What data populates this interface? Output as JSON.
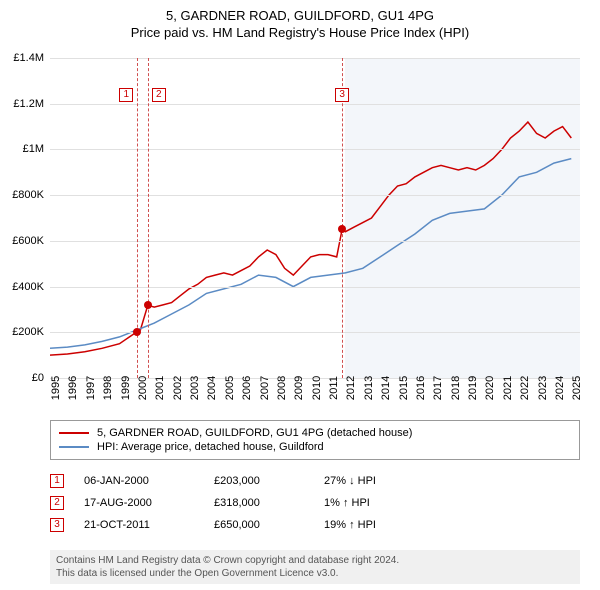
{
  "title": {
    "main": "5, GARDNER ROAD, GUILDFORD, GU1 4PG",
    "sub": "Price paid vs. HM Land Registry's House Price Index (HPI)"
  },
  "chart": {
    "type": "line",
    "background_color": "#ffffff",
    "grid_color": "#e0e0e0",
    "shaded_region_color": "#f3f6fa",
    "shaded_region_x_start": 2012,
    "x_range": [
      1995,
      2025.5
    ],
    "y_range": [
      0,
      1400000
    ],
    "y_ticks": [
      {
        "v": 0,
        "label": "£0"
      },
      {
        "v": 200000,
        "label": "£200K"
      },
      {
        "v": 400000,
        "label": "£400K"
      },
      {
        "v": 600000,
        "label": "£600K"
      },
      {
        "v": 800000,
        "label": "£800K"
      },
      {
        "v": 1000000,
        "label": "£1M"
      },
      {
        "v": 1200000,
        "label": "£1.2M"
      },
      {
        "v": 1400000,
        "label": "£1.4M"
      }
    ],
    "x_ticks": [
      1995,
      1996,
      1997,
      1998,
      1999,
      2000,
      2001,
      2002,
      2003,
      2004,
      2005,
      2006,
      2007,
      2008,
      2009,
      2010,
      2011,
      2012,
      2013,
      2014,
      2015,
      2016,
      2017,
      2018,
      2019,
      2020,
      2021,
      2022,
      2023,
      2024,
      2025
    ],
    "x_tick_fontsize": 11,
    "y_tick_fontsize": 11,
    "reference_lines": [
      {
        "x": 2000.02,
        "marker": "1"
      },
      {
        "x": 2000.63,
        "marker": "2"
      },
      {
        "x": 2011.81,
        "marker": "3"
      }
    ],
    "data_points": [
      {
        "x": 2000.02,
        "y": 203000
      },
      {
        "x": 2000.63,
        "y": 318000
      },
      {
        "x": 2011.81,
        "y": 650000
      }
    ],
    "series": [
      {
        "name": "price_paid",
        "color": "#cc0000",
        "width": 1.5,
        "points": [
          [
            1995,
            100000
          ],
          [
            1996,
            105000
          ],
          [
            1997,
            115000
          ],
          [
            1998,
            130000
          ],
          [
            1999,
            150000
          ],
          [
            2000.02,
            203000
          ],
          [
            2000.2,
            210000
          ],
          [
            2000.63,
            318000
          ],
          [
            2001,
            310000
          ],
          [
            2001.5,
            320000
          ],
          [
            2002,
            330000
          ],
          [
            2002.5,
            360000
          ],
          [
            2003,
            390000
          ],
          [
            2003.5,
            410000
          ],
          [
            2004,
            440000
          ],
          [
            2004.5,
            450000
          ],
          [
            2005,
            460000
          ],
          [
            2005.5,
            450000
          ],
          [
            2006,
            470000
          ],
          [
            2006.5,
            490000
          ],
          [
            2007,
            530000
          ],
          [
            2007.5,
            560000
          ],
          [
            2008,
            540000
          ],
          [
            2008.5,
            480000
          ],
          [
            2009,
            450000
          ],
          [
            2009.5,
            490000
          ],
          [
            2010,
            530000
          ],
          [
            2010.5,
            540000
          ],
          [
            2011,
            540000
          ],
          [
            2011.5,
            530000
          ],
          [
            2011.81,
            650000
          ],
          [
            2012,
            640000
          ],
          [
            2012.5,
            660000
          ],
          [
            2013,
            680000
          ],
          [
            2013.5,
            700000
          ],
          [
            2014,
            750000
          ],
          [
            2014.5,
            800000
          ],
          [
            2015,
            840000
          ],
          [
            2015.5,
            850000
          ],
          [
            2016,
            880000
          ],
          [
            2016.5,
            900000
          ],
          [
            2017,
            920000
          ],
          [
            2017.5,
            930000
          ],
          [
            2018,
            920000
          ],
          [
            2018.5,
            910000
          ],
          [
            2019,
            920000
          ],
          [
            2019.5,
            910000
          ],
          [
            2020,
            930000
          ],
          [
            2020.5,
            960000
          ],
          [
            2021,
            1000000
          ],
          [
            2021.5,
            1050000
          ],
          [
            2022,
            1080000
          ],
          [
            2022.5,
            1120000
          ],
          [
            2023,
            1070000
          ],
          [
            2023.5,
            1050000
          ],
          [
            2024,
            1080000
          ],
          [
            2024.5,
            1100000
          ],
          [
            2025,
            1050000
          ]
        ]
      },
      {
        "name": "hpi",
        "color": "#5b8bc4",
        "width": 1.5,
        "points": [
          [
            1995,
            130000
          ],
          [
            1996,
            135000
          ],
          [
            1997,
            145000
          ],
          [
            1998,
            160000
          ],
          [
            1999,
            180000
          ],
          [
            2000,
            210000
          ],
          [
            2001,
            240000
          ],
          [
            2002,
            280000
          ],
          [
            2003,
            320000
          ],
          [
            2004,
            370000
          ],
          [
            2005,
            390000
          ],
          [
            2006,
            410000
          ],
          [
            2007,
            450000
          ],
          [
            2008,
            440000
          ],
          [
            2009,
            400000
          ],
          [
            2010,
            440000
          ],
          [
            2011,
            450000
          ],
          [
            2012,
            460000
          ],
          [
            2013,
            480000
          ],
          [
            2014,
            530000
          ],
          [
            2015,
            580000
          ],
          [
            2016,
            630000
          ],
          [
            2017,
            690000
          ],
          [
            2018,
            720000
          ],
          [
            2019,
            730000
          ],
          [
            2020,
            740000
          ],
          [
            2021,
            800000
          ],
          [
            2022,
            880000
          ],
          [
            2023,
            900000
          ],
          [
            2024,
            940000
          ],
          [
            2025,
            960000
          ]
        ]
      }
    ]
  },
  "legend": {
    "items": [
      {
        "color": "#cc0000",
        "label": "5, GARDNER ROAD, GUILDFORD, GU1 4PG (detached house)"
      },
      {
        "color": "#5b8bc4",
        "label": "HPI: Average price, detached house, Guildford"
      }
    ]
  },
  "events": [
    {
      "n": "1",
      "date": "06-JAN-2000",
      "price": "£203,000",
      "pct": "27% ↓ HPI"
    },
    {
      "n": "2",
      "date": "17-AUG-2000",
      "price": "£318,000",
      "pct": "1% ↑ HPI"
    },
    {
      "n": "3",
      "date": "21-OCT-2011",
      "price": "£650,000",
      "pct": "19% ↑ HPI"
    }
  ],
  "footer": {
    "line1": "Contains HM Land Registry data © Crown copyright and database right 2024.",
    "line2": "This data is licensed under the Open Government Licence v3.0."
  }
}
